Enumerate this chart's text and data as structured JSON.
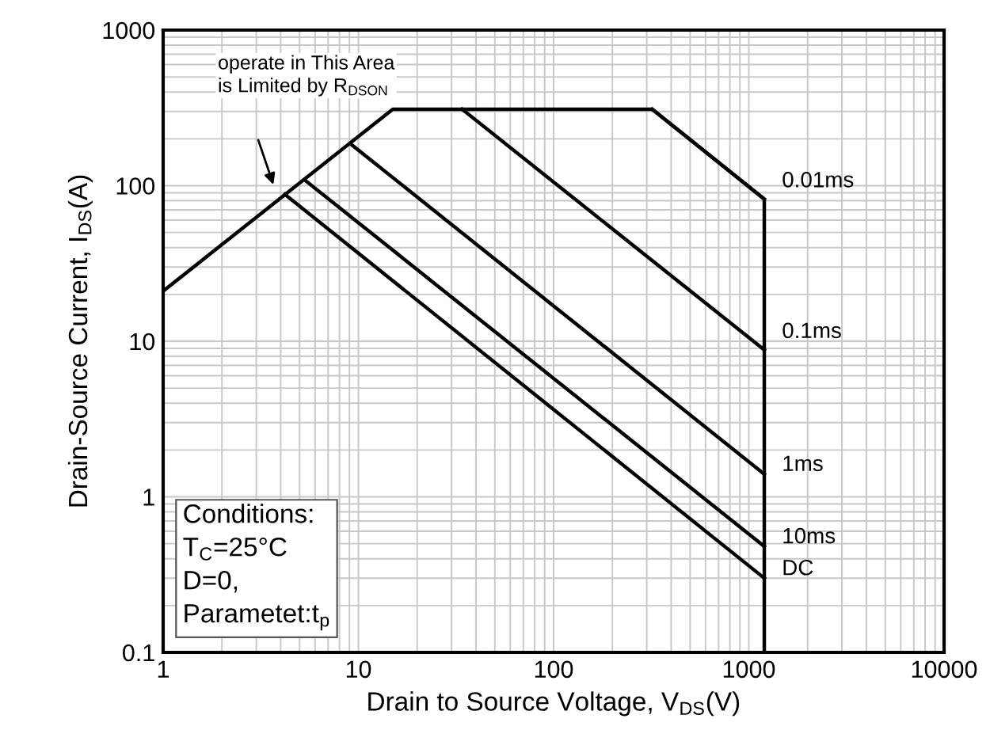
{
  "chart_data": {
    "type": "line",
    "xlabel": "Drain to Source Voltage, V$_{DS}$(V)",
    "ylabel": "Drain-Source Current, I$_{DS}$(A)",
    "log": "xy",
    "xlim": [
      1,
      10000
    ],
    "ylim": [
      0.1,
      1000
    ],
    "xticks": [
      1,
      10,
      100,
      1000,
      10000
    ],
    "yticks": [
      {
        "value": 0.1,
        "label": "0.1"
      },
      1,
      10,
      100,
      1000
    ],
    "grid": true,
    "legend": false,
    "marker": "none",
    "line_style": "solid",
    "series": [
      {
        "color": "#000000",
        "x": [
          1,
          15,
          320,
          1200,
          1200
        ],
        "values": [
          21,
          310,
          310,
          82,
          0.1
        ]
      },
      {
        "name": "0.01ms",
        "color": "#000000",
        "x": [
          320,
          1200
        ],
        "values": [
          310,
          82
        ]
      },
      {
        "name": "0.1ms",
        "color": "#000000",
        "x": [
          34,
          1200
        ],
        "values": [
          310,
          8.8
        ]
      },
      {
        "name": "1ms",
        "color": "#000000",
        "x": [
          9.1,
          1200
        ],
        "values": [
          186,
          1.4
        ]
      },
      {
        "name": "10ms",
        "color": "#000000",
        "x": [
          5.3,
          1200
        ],
        "values": [
          109,
          0.48
        ]
      },
      {
        "name": "DC",
        "color": "#000000",
        "x": [
          4.2,
          1200
        ],
        "values": [
          88,
          0.3
        ]
      }
    ],
    "annotations": [
      "operate in This Area\nis Limited by R$_{DSON}$",
      "Conditions:\nT$_{C}$=25°C\nD=0,\nParametet:t$_{p}$"
    ]
  }
}
